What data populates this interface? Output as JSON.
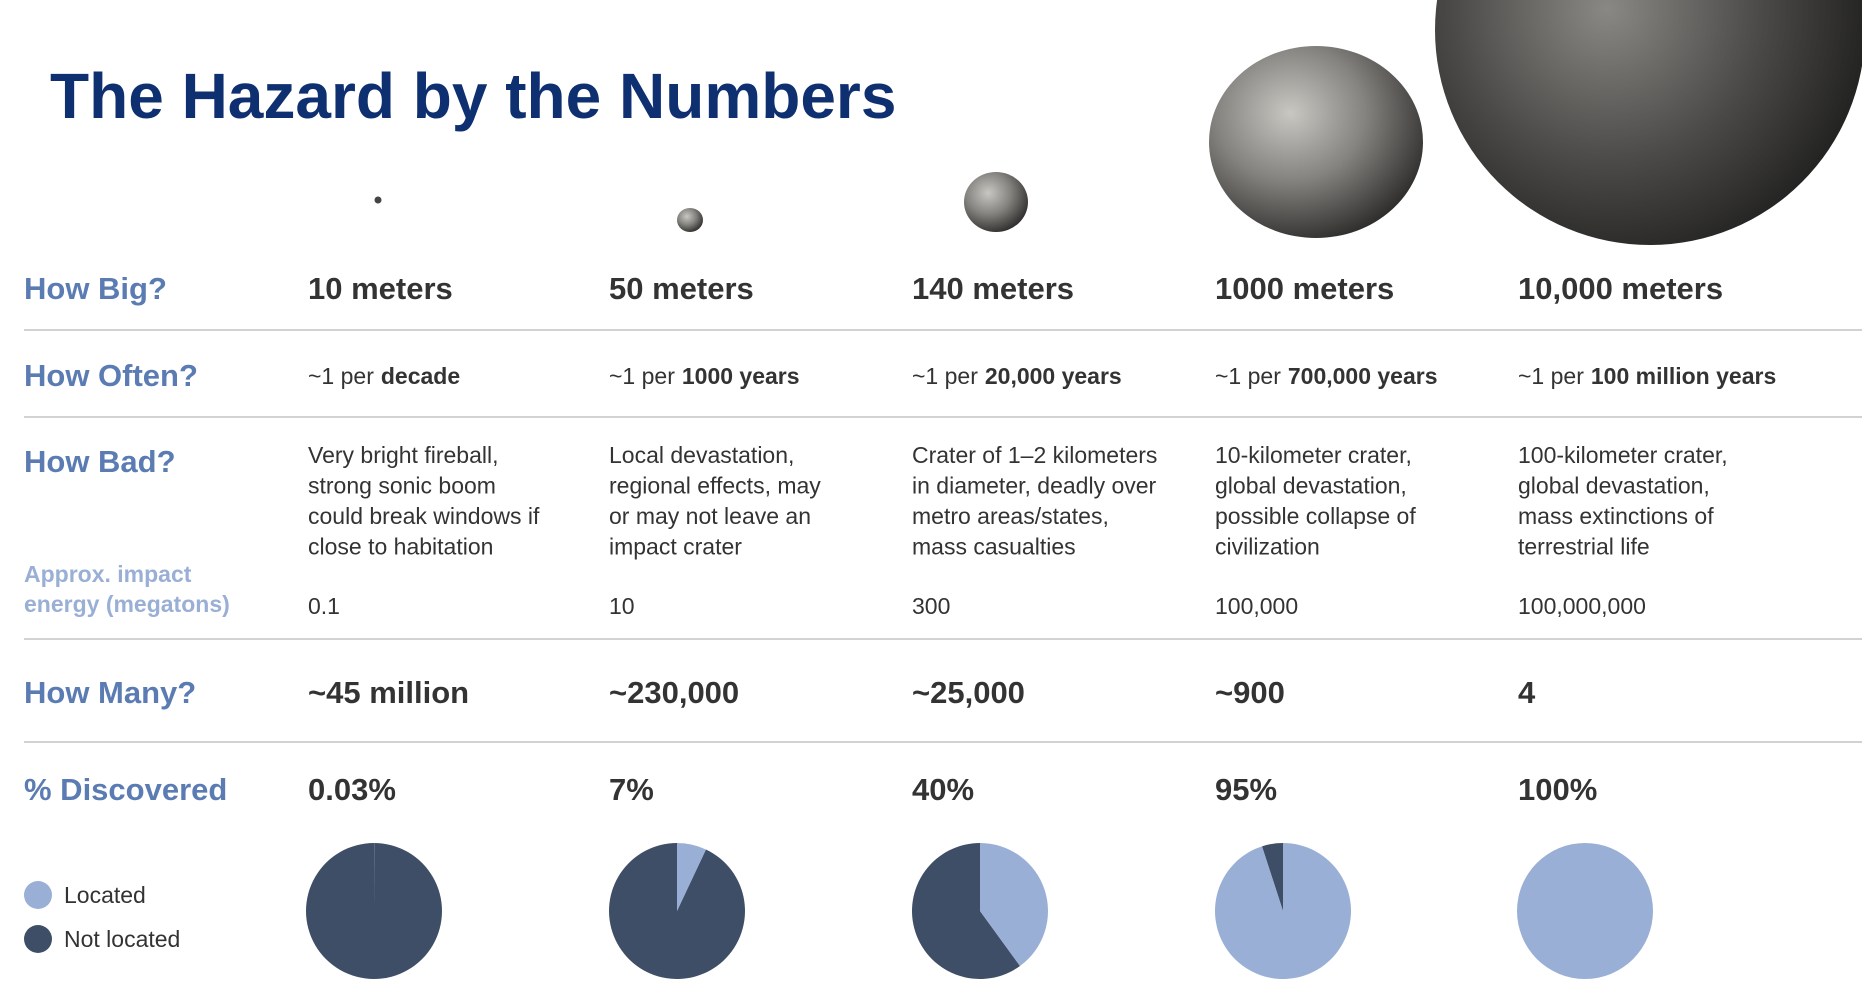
{
  "title": "The Hazard by the Numbers",
  "row_labels": {
    "how_big": "How Big?",
    "how_often": "How Often?",
    "how_bad": "How Bad?",
    "energy": [
      "Approx. impact",
      "energy (megatons)"
    ],
    "how_many": "How Many?",
    "discovered": "% Discovered"
  },
  "columns": [
    {
      "size": "10 meters",
      "often_prefix": "~1 per",
      "often_period": "decade",
      "bad": [
        "Very bright fireball,",
        "strong sonic boom",
        "could break windows if",
        "close to habitation"
      ],
      "energy": "0.1",
      "many": "~45 million"
    },
    {
      "size": "50 meters",
      "often_prefix": "~1 per",
      "often_period": "1000 years",
      "bad": [
        "Local devastation,",
        "regional effects, may",
        "or may not leave an",
        "impact crater"
      ],
      "energy": "10",
      "many": "~230,000"
    },
    {
      "size": "140 meters",
      "often_prefix": "~1 per",
      "often_period": "20,000 years",
      "bad": [
        "Crater of 1–2 kilometers",
        "in diameter, deadly over",
        "metro areas/states,",
        "mass casualties"
      ],
      "energy": "300",
      "many": "~25,000"
    },
    {
      "size": "1000 meters",
      "often_prefix": "~1 per",
      "often_period": "700,000 years",
      "bad": [
        "10-kilometer crater,",
        "global devastation,",
        "possible collapse of",
        "civilization"
      ],
      "energy": "100,000",
      "many": "~900"
    },
    {
      "size": "10,000 meters",
      "often_prefix": "~1 per",
      "often_period": "100 million years",
      "bad": [
        "100-kilometer crater,",
        "global devastation,",
        "mass extinctions of",
        "terrestrial life"
      ],
      "energy": "100,000,000",
      "many": "4"
    }
  ],
  "chart_data": {
    "type": "pie",
    "values": [
      0.03,
      7,
      40,
      95,
      100
    ],
    "value_labels": [
      "0.03%",
      "7%",
      "40%",
      "95%",
      "100%"
    ],
    "legend": [
      {
        "name": "Located",
        "color": "#9aafd6"
      },
      {
        "name": "Not located",
        "color": "#3f4e67"
      }
    ]
  }
}
